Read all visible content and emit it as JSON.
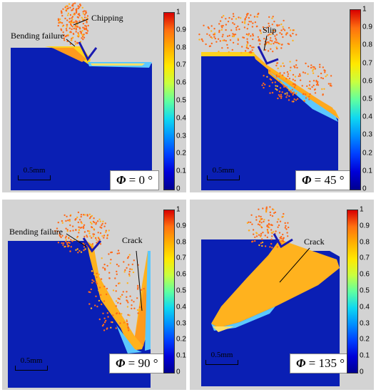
{
  "colorbar_ticks": [
    "1",
    "0.9",
    "0.8",
    "0.7",
    "0.6",
    "0.5",
    "0.4",
    "0.3",
    "0.2",
    "0.1",
    "0"
  ],
  "colorbar_colors": [
    "#000090",
    "#0040ff",
    "#10d8f0",
    "#c8ff40",
    "#ffe800",
    "#ff7010",
    "#d80000"
  ],
  "panels": {
    "p0": {
      "phi_symbol": "Φ",
      "phi_value": "= 0 °",
      "scale": "0.5mm",
      "labels": {
        "chipping": "Chipping",
        "bending": "Bending failure"
      }
    },
    "p45": {
      "phi_symbol": "Φ",
      "phi_value": "= 45 °",
      "scale": "0.5mm",
      "labels": {
        "slip": "Slip"
      }
    },
    "p90": {
      "phi_symbol": "Φ",
      "phi_value": "= 90 °",
      "scale": "0.5mm",
      "labels": {
        "bending": "Bending failure",
        "crack": "Crack"
      }
    },
    "p135": {
      "phi_symbol": "Φ",
      "phi_value": "= 135 °",
      "scale": "0.5mm",
      "labels": {
        "crack": "Crack"
      }
    }
  }
}
